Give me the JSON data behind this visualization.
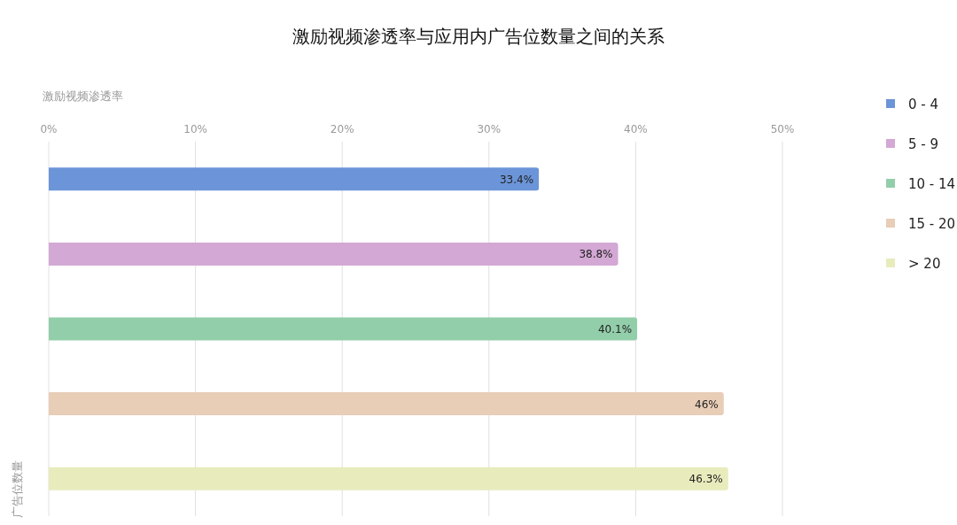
{
  "chart_data": {
    "type": "bar",
    "orientation": "horizontal",
    "title": "激励视频渗透率与应用内广告位数量之间的关系",
    "xlabel": "激励视频渗透率",
    "ylabel": "广告位数量",
    "categories": [
      null,
      null,
      null,
      null,
      null
    ],
    "series": [
      {
        "name": "0 - 4",
        "color": "#6b95d8",
        "values": [
          33.4,
          null,
          null,
          null,
          null
        ],
        "value_labels": [
          "33.4%",
          null,
          null,
          null,
          null
        ]
      },
      {
        "name": "5 - 9",
        "color": "#d3a8d4",
        "values": [
          null,
          38.8,
          null,
          null,
          null
        ],
        "value_labels": [
          null,
          "38.8%",
          null,
          null,
          null
        ]
      },
      {
        "name": "10 - 14",
        "color": "#93ceab",
        "values": [
          null,
          null,
          40.1,
          null,
          null
        ],
        "value_labels": [
          null,
          null,
          "40.1%",
          null,
          null
        ]
      },
      {
        "name": "15 - 20",
        "color": "#e8cdb7",
        "values": [
          null,
          null,
          null,
          46,
          null
        ],
        "value_labels": [
          null,
          null,
          null,
          "46%",
          null
        ]
      },
      {
        "name": "> 20",
        "color": "#e8ebbc",
        "values": [
          null,
          null,
          null,
          null,
          46.3
        ],
        "value_labels": [
          null,
          null,
          null,
          null,
          "46.3%"
        ]
      }
    ],
    "xlim": [
      0,
      50
    ],
    "xticks": [
      {
        "value": 0,
        "label": "0%"
      },
      {
        "value": 10,
        "label": "10%"
      },
      {
        "value": 20,
        "label": "20%"
      },
      {
        "value": 30,
        "label": "30%"
      },
      {
        "value": 40,
        "label": "40%"
      },
      {
        "value": 50,
        "label": "50%"
      }
    ],
    "grid": "x",
    "legend": "right"
  }
}
